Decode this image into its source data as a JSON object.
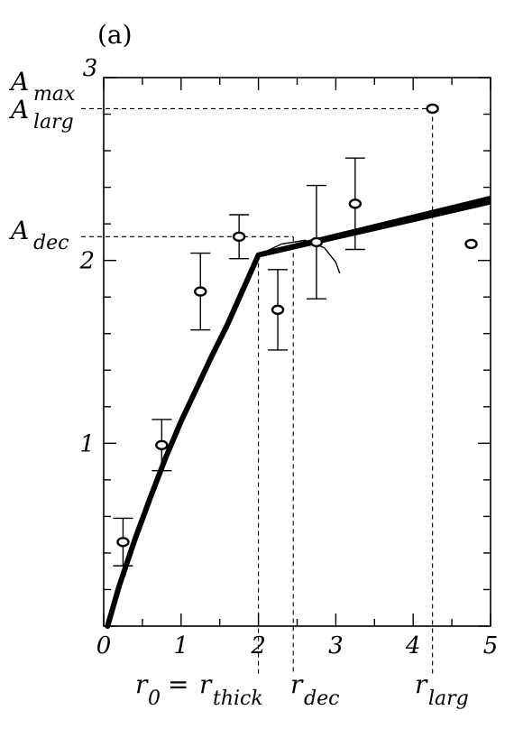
{
  "chart_data": {
    "type": "scatter",
    "panel_label": "(a)",
    "xlabel": "",
    "ylabel": "",
    "xlim": [
      0,
      5
    ],
    "ylim": [
      0,
      3
    ],
    "x_ticks": [
      "0",
      "1",
      "2",
      "3",
      "4",
      "5"
    ],
    "x_tick_values": [
      0,
      1,
      2,
      3,
      4,
      5
    ],
    "y_ticks": [
      "1",
      "2",
      "3"
    ],
    "y_tick_values": [
      1,
      2,
      3
    ],
    "grid": false,
    "points": [
      {
        "x": 0.25,
        "y": 0.46,
        "err": 0.13
      },
      {
        "x": 0.75,
        "y": 0.99,
        "err": 0.14
      },
      {
        "x": 1.25,
        "y": 1.83,
        "err": 0.21
      },
      {
        "x": 1.75,
        "y": 2.13,
        "err": 0.12
      },
      {
        "x": 2.25,
        "y": 1.73,
        "err": 0.22
      },
      {
        "x": 2.75,
        "y": 2.1,
        "err": 0.31
      },
      {
        "x": 3.25,
        "y": 2.31,
        "err": 0.25
      },
      {
        "x": 4.25,
        "y": 2.83,
        "err": null
      },
      {
        "x": 4.75,
        "y": 2.09,
        "err": null
      }
    ],
    "fit_curve": [
      [
        0.05,
        0.0
      ],
      [
        0.2,
        0.22
      ],
      [
        0.4,
        0.47
      ],
      [
        0.6,
        0.7
      ],
      [
        0.8,
        0.92
      ],
      [
        1.0,
        1.12
      ],
      [
        1.2,
        1.3
      ],
      [
        1.4,
        1.48
      ],
      [
        1.6,
        1.65
      ],
      [
        1.8,
        1.84
      ],
      [
        2.0,
        2.03
      ]
    ],
    "fit_line": [
      [
        2.0,
        2.03
      ],
      [
        5.0,
        2.33
      ]
    ],
    "thin_arc": [
      [
        2.0,
        2.03
      ],
      [
        2.3,
        2.09
      ],
      [
        2.6,
        2.11
      ],
      [
        2.85,
        2.07
      ],
      [
        3.0,
        1.99
      ],
      [
        3.05,
        1.93
      ]
    ],
    "reference_lines": {
      "A_max": 2.87,
      "A_larg": 2.83,
      "A_dec": 2.13,
      "r_thick": 2.0,
      "r_dec": 2.45,
      "r_larg": 4.25
    },
    "annotations": {
      "a_max_base": "A",
      "a_max_sub": "max",
      "a_larg_base": "A",
      "a_larg_sub": "larg",
      "a_dec_base": "A",
      "a_dec_sub": "dec",
      "r0_base": "r",
      "r0_sub": "0",
      "equals": "=",
      "r_thick_base": "r",
      "r_thick_sub": "thick",
      "r_dec_base": "r",
      "r_dec_sub": "dec",
      "r_larg_base": "r",
      "r_larg_sub": "larg"
    }
  }
}
